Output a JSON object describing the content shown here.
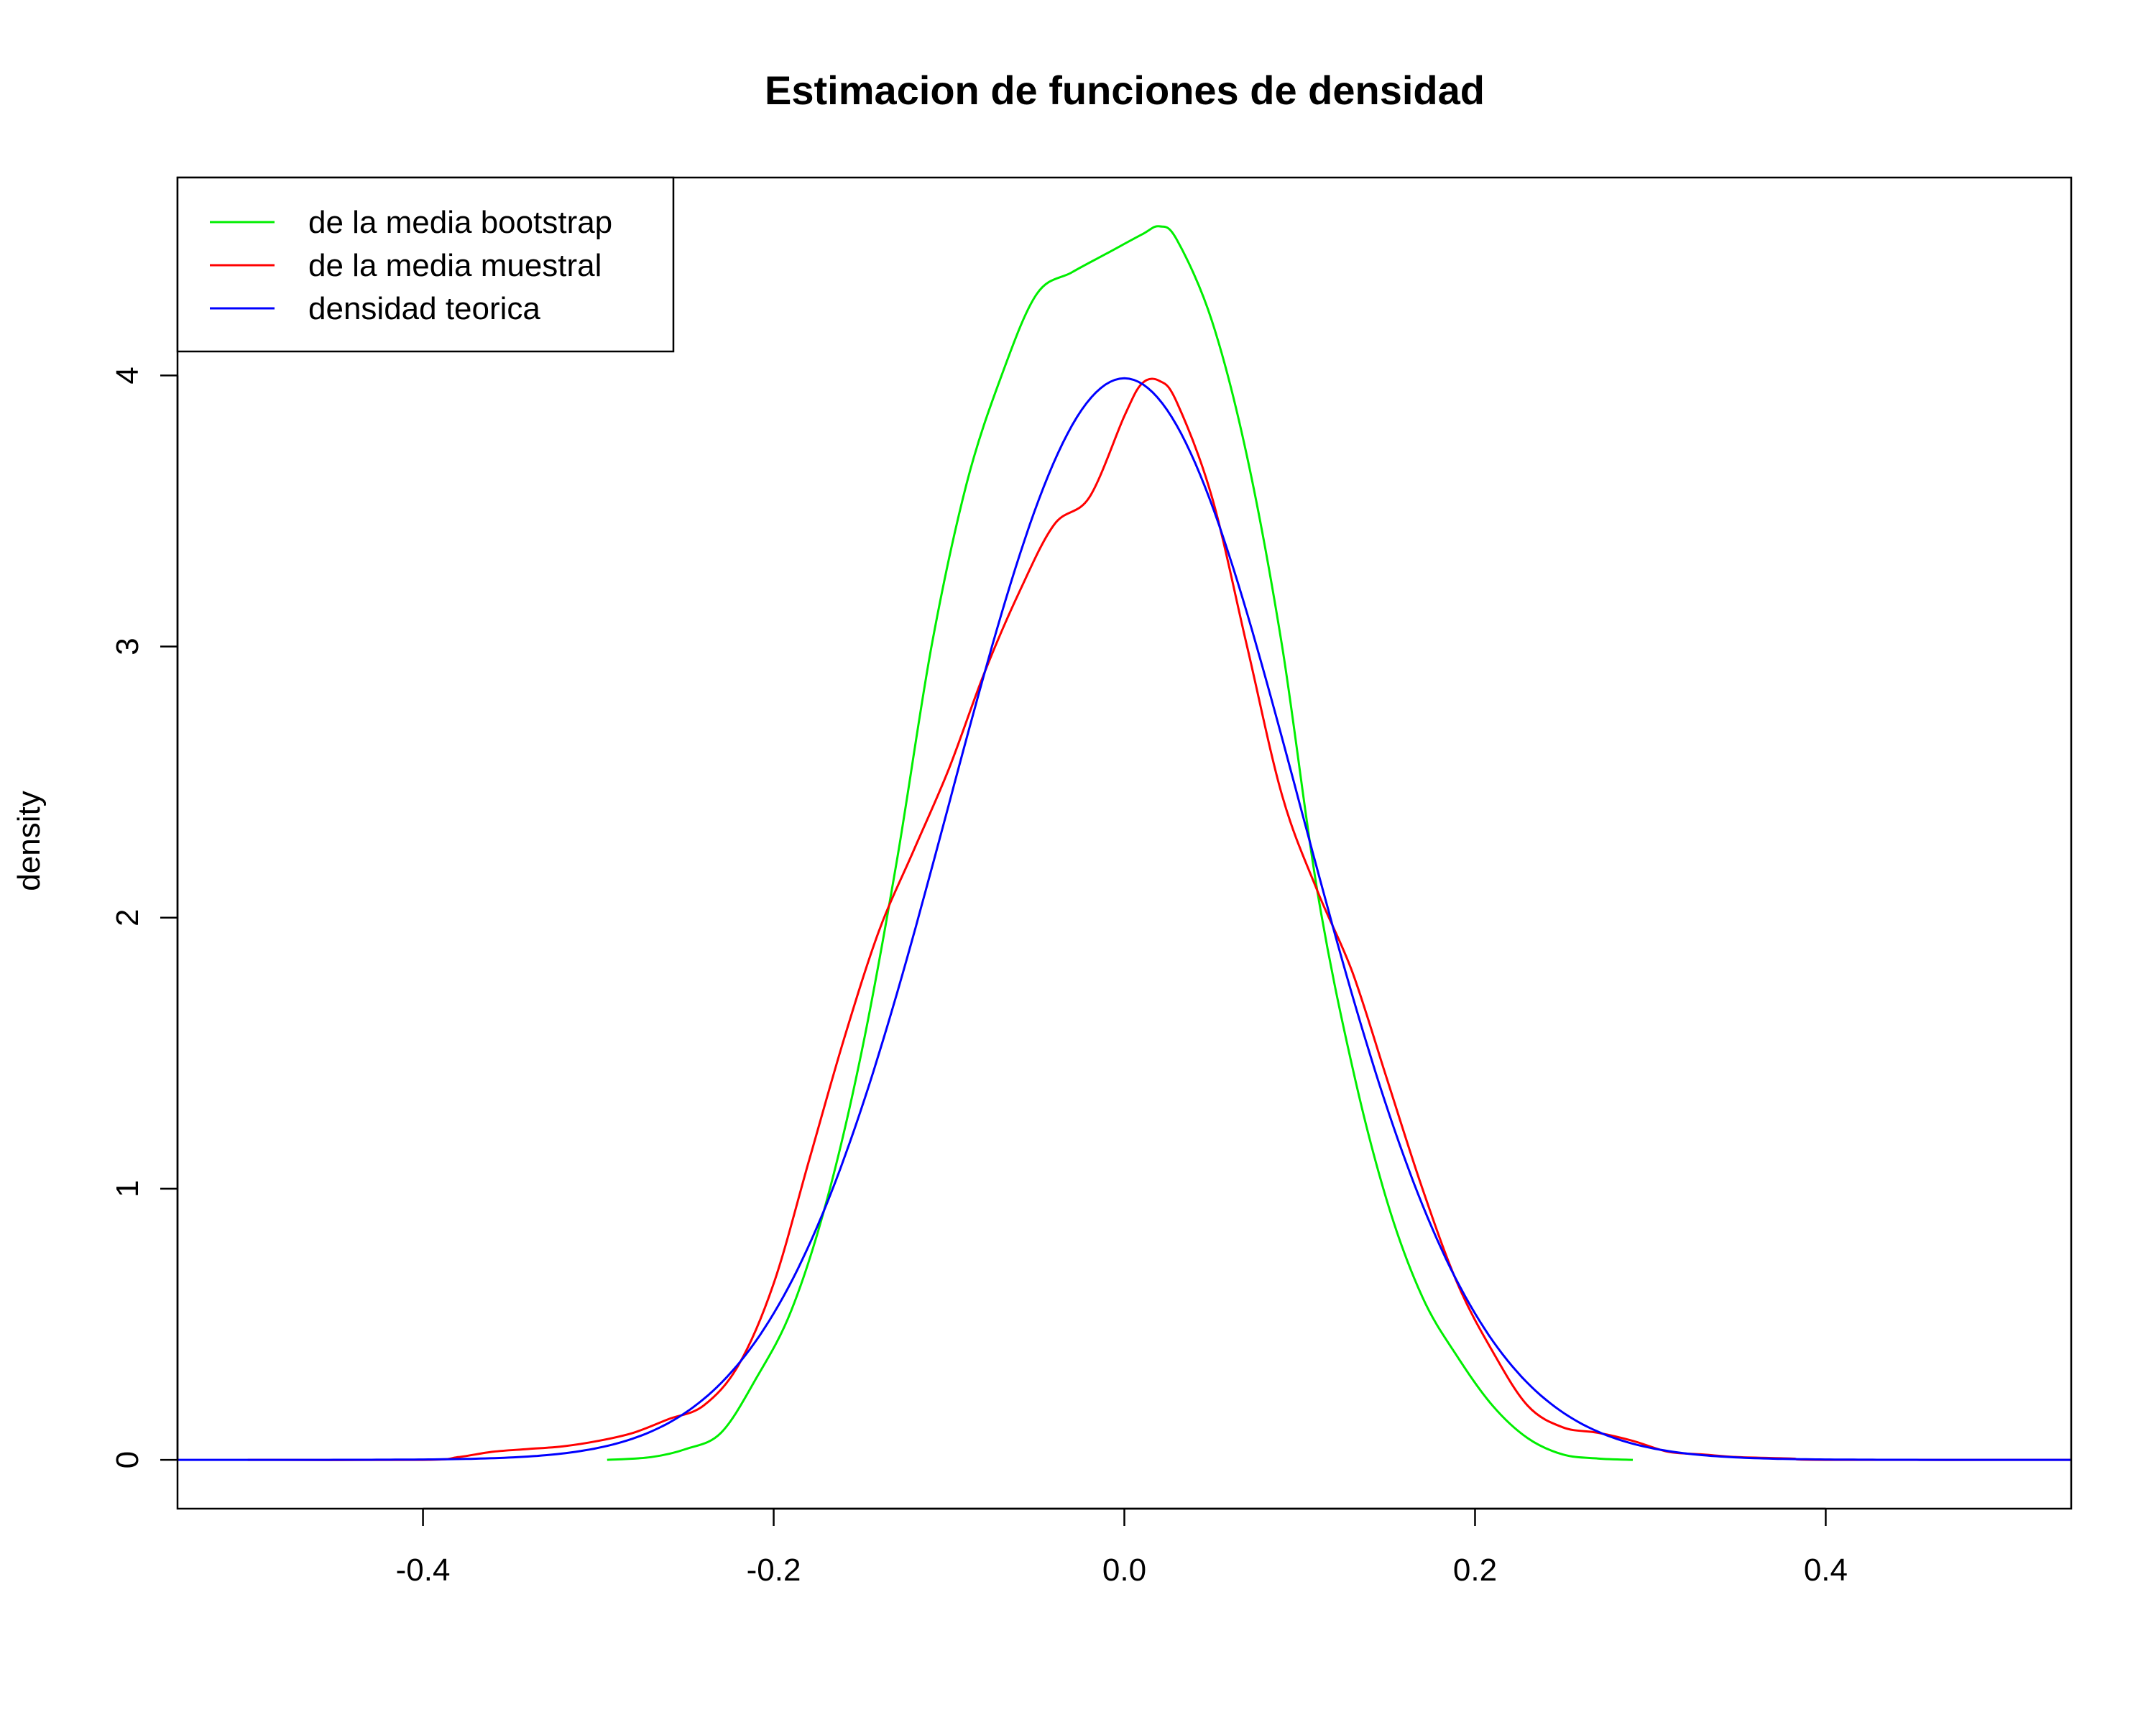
{
  "chart_data": {
    "type": "line",
    "title": "Estimacion de funciones de densidad",
    "xlabel": "",
    "ylabel": "density",
    "xlim": [
      -0.54,
      0.54
    ],
    "ylim": [
      -0.18,
      4.73
    ],
    "x_ticks": [
      "-0.4",
      "-0.2",
      "0.0",
      "0.2",
      "0.4"
    ],
    "x_tick_values": [
      -0.4,
      -0.2,
      0.0,
      0.2,
      0.4
    ],
    "y_ticks": [
      "0",
      "1",
      "2",
      "3",
      "4"
    ],
    "y_tick_values": [
      0,
      1,
      2,
      3,
      4
    ],
    "grid": false,
    "legend_position": "top-left",
    "series": [
      {
        "name": "de la media bootstrap",
        "color": "#00ee00",
        "x": [
          -0.295,
          -0.27,
          -0.25,
          -0.23,
          -0.21,
          -0.19,
          -0.17,
          -0.15,
          -0.13,
          -0.11,
          -0.09,
          -0.07,
          -0.05,
          -0.03,
          -0.01,
          0.01,
          0.02,
          0.03,
          0.05,
          0.07,
          0.09,
          0.11,
          0.13,
          0.15,
          0.17,
          0.19,
          0.21,
          0.23,
          0.25,
          0.27,
          0.29
        ],
        "y": [
          0.0,
          0.01,
          0.04,
          0.1,
          0.3,
          0.55,
          0.95,
          1.5,
          2.2,
          3.0,
          3.6,
          4.0,
          4.3,
          4.38,
          4.45,
          4.52,
          4.55,
          4.5,
          4.2,
          3.7,
          3.0,
          2.1,
          1.45,
          0.95,
          0.6,
          0.38,
          0.2,
          0.08,
          0.02,
          0.005,
          0.0
        ]
      },
      {
        "name": "de la media muestral",
        "color": "#ff0000",
        "x": [
          -0.5,
          -0.4,
          -0.38,
          -0.36,
          -0.34,
          -0.32,
          -0.3,
          -0.28,
          -0.26,
          -0.24,
          -0.22,
          -0.2,
          -0.18,
          -0.16,
          -0.14,
          -0.12,
          -0.1,
          -0.08,
          -0.06,
          -0.04,
          -0.02,
          0.0,
          0.01,
          0.02,
          0.03,
          0.05,
          0.07,
          0.09,
          0.11,
          0.13,
          0.15,
          0.17,
          0.19,
          0.21,
          0.23,
          0.25,
          0.27,
          0.29,
          0.31,
          0.33,
          0.35,
          0.38,
          0.4,
          0.54
        ],
        "y": [
          0.0,
          0.0,
          0.01,
          0.03,
          0.04,
          0.05,
          0.07,
          0.1,
          0.15,
          0.2,
          0.35,
          0.65,
          1.1,
          1.55,
          1.95,
          2.25,
          2.55,
          2.9,
          3.2,
          3.45,
          3.55,
          3.85,
          3.97,
          3.98,
          3.9,
          3.55,
          3.0,
          2.45,
          2.1,
          1.8,
          1.4,
          1.0,
          0.65,
          0.4,
          0.2,
          0.12,
          0.1,
          0.07,
          0.03,
          0.02,
          0.01,
          0.005,
          0.0,
          0.0
        ]
      },
      {
        "name": "densidad teorica",
        "color": "#0000ff",
        "mean": 0.0,
        "sd": 0.1,
        "x_range": [
          -0.54,
          0.54
        ]
      }
    ]
  }
}
